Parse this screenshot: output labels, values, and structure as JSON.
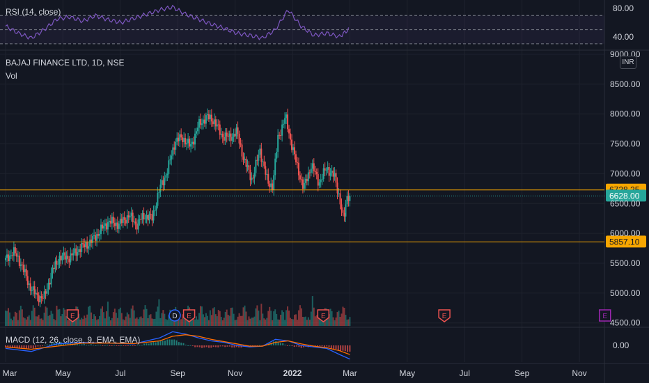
{
  "header": {
    "symbol_title": "BAJAJ FINANCE LTD, 1D, NSE",
    "volume_label": "Vol",
    "currency_button": "INR"
  },
  "indicators": {
    "rsi_label": "RSI (14, close)",
    "macd_label": "MACD (12, 26, close, 9, EMA, EMA)"
  },
  "colors": {
    "background": "#131722",
    "grid": "#1e222d",
    "up": "#26a69a",
    "down": "#ef5350",
    "level_line": "#f7a600",
    "rsi_line": "#7e57c2",
    "macd_line": "#2962ff",
    "signal_line": "#ff6d00",
    "event_earnings": "#ef5350",
    "event_dividend": "#2962ff",
    "event_future": "#9c27b0",
    "text": "#d1d4dc"
  },
  "chart_data": [
    {
      "type": "candlestick",
      "pane": "price",
      "price_axis_ticks": [
        "9000.00",
        "8500.00",
        "8000.00",
        "7500.00",
        "7000.00",
        "6500.00",
        "6000.00",
        "5500.00",
        "5000.00",
        "4500.00"
      ],
      "price_ylim": [
        4450,
        9000
      ],
      "time_axis_ticks": [
        "Mar",
        "May",
        "Jul",
        "Sep",
        "Nov",
        "2022",
        "Mar",
        "May",
        "Jul",
        "Sep",
        "Nov"
      ],
      "horizontal_levels": [
        {
          "label": "6728.25",
          "price": 6728.25,
          "color": "#f7a600"
        },
        {
          "label": "5857.10",
          "price": 5857.1,
          "color": "#f7a600"
        }
      ],
      "last_price": {
        "label": "6628.00",
        "price": 6628.0,
        "color": "#26a69a"
      },
      "price_path": [
        [
          0,
          5550
        ],
        [
          0.3,
          5700
        ],
        [
          0.6,
          5500
        ],
        [
          0.9,
          5150
        ],
        [
          1.2,
          4950
        ],
        [
          1.5,
          4920
        ],
        [
          1.8,
          5350
        ],
        [
          2.1,
          5600
        ],
        [
          2.5,
          5600
        ],
        [
          2.9,
          5750
        ],
        [
          3.3,
          5850
        ],
        [
          3.7,
          6050
        ],
        [
          4.0,
          6200
        ],
        [
          4.4,
          6150
        ],
        [
          4.8,
          6300
        ],
        [
          5.1,
          6150
        ],
        [
          5.4,
          6300
        ],
        [
          5.7,
          6250
        ],
        [
          6.0,
          6750
        ],
        [
          6.3,
          7050
        ],
        [
          6.6,
          7550
        ],
        [
          6.9,
          7600
        ],
        [
          7.2,
          7450
        ],
        [
          7.5,
          7800
        ],
        [
          7.8,
          7950
        ],
        [
          8.1,
          7900
        ],
        [
          8.4,
          7650
        ],
        [
          8.7,
          7600
        ],
        [
          9.0,
          7700
        ],
        [
          9.3,
          7200
        ],
        [
          9.6,
          6900
        ],
        [
          9.9,
          7400
        ],
        [
          10.2,
          6850
        ],
        [
          10.4,
          6800
        ],
        [
          10.6,
          7600
        ],
        [
          10.9,
          7950
        ],
        [
          11.1,
          7550
        ],
        [
          11.3,
          7200
        ],
        [
          11.6,
          6750
        ],
        [
          11.9,
          7150
        ],
        [
          12.2,
          6850
        ],
        [
          12.5,
          7100
        ],
        [
          12.8,
          6950
        ],
        [
          13.0,
          6600
        ],
        [
          13.15,
          6200
        ],
        [
          13.3,
          6650
        ],
        [
          13.4,
          6628
        ]
      ],
      "volume_note": "volume histogram along price pane bottom"
    },
    {
      "type": "line",
      "pane": "rsi",
      "axis_ticks": [
        "80.00",
        "40.00"
      ],
      "ylim": [
        25,
        90
      ],
      "reference_levels": [
        70,
        50,
        30
      ],
      "x": [
        0,
        0.5,
        1.0,
        1.5,
        2.0,
        2.5,
        3.0,
        3.5,
        4.0,
        4.5,
        5.0,
        5.5,
        6.0,
        6.5,
        7.0,
        7.5,
        8.0,
        8.5,
        9.0,
        9.5,
        10.0,
        10.5,
        11.0,
        11.5,
        12.0,
        12.5,
        13.0,
        13.4
      ],
      "values": [
        55,
        45,
        38,
        50,
        65,
        68,
        62,
        70,
        64,
        60,
        66,
        72,
        78,
        82,
        72,
        65,
        58,
        52,
        45,
        42,
        38,
        50,
        78,
        55,
        42,
        45,
        40,
        52
      ]
    },
    {
      "type": "line",
      "pane": "macd",
      "axis_ticks": [
        "0.00"
      ],
      "ylim": [
        -1,
        1
      ],
      "x": [
        0,
        1,
        2,
        3,
        4,
        5,
        6,
        6.5,
        7,
        7.5,
        8,
        8.5,
        9,
        9.5,
        10,
        10.5,
        11,
        11.5,
        12,
        12.5,
        13,
        13.4
      ],
      "series": [
        {
          "values": [
            -0.2,
            -0.4,
            0.1,
            0.2,
            0.15,
            0.1,
            0.5,
            0.9,
            0.75,
            0.5,
            0.3,
            0.2,
            0.0,
            -0.1,
            -0.05,
            0.4,
            0.3,
            0.0,
            -0.1,
            -0.2,
            -0.6,
            -0.9
          ]
        },
        {
          "values": [
            -0.1,
            -0.25,
            -0.05,
            0.15,
            0.15,
            0.12,
            0.3,
            0.6,
            0.7,
            0.6,
            0.4,
            0.25,
            0.1,
            -0.05,
            -0.05,
            0.2,
            0.3,
            0.1,
            -0.05,
            -0.15,
            -0.35,
            -0.6
          ]
        }
      ]
    }
  ],
  "events": [
    {
      "label": "E",
      "x": 1.17,
      "kind": "earnings"
    },
    {
      "label": "D",
      "x": 2.95,
      "kind": "dividend"
    },
    {
      "label": "E",
      "x": 3.2,
      "kind": "earnings"
    },
    {
      "label": "E",
      "x": 5.54,
      "kind": "earnings"
    },
    {
      "label": "E",
      "x": 7.65,
      "kind": "earnings"
    },
    {
      "label": "E",
      "x": 10.45,
      "kind": "future"
    }
  ]
}
